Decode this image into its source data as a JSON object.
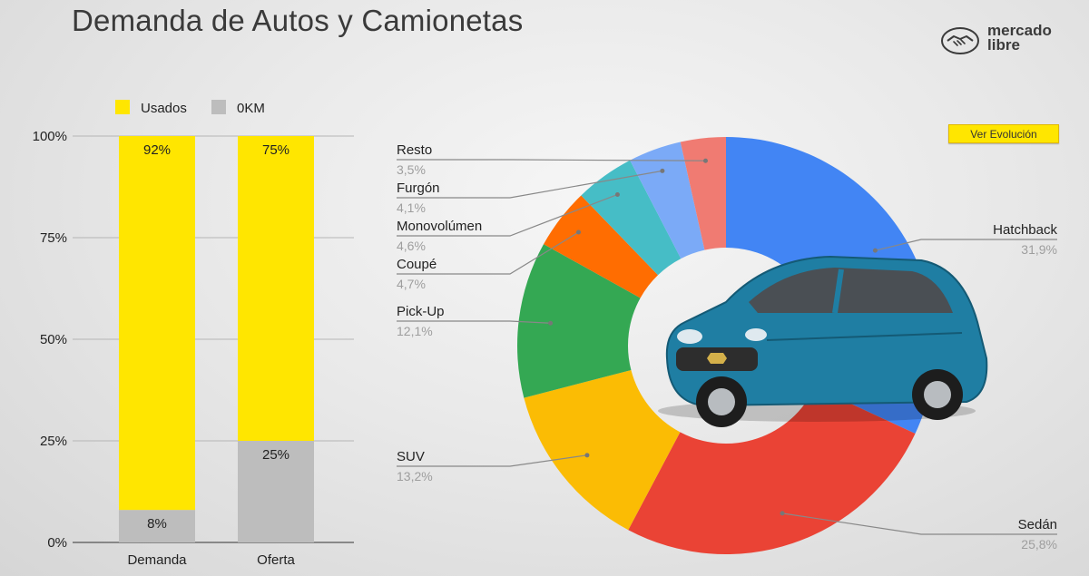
{
  "header": {
    "title": "Demanda de Autos y Camionetas",
    "logo_line1": "mercado",
    "logo_line2": "libre",
    "evolution_button": "Ver Evolución"
  },
  "chart_data": [
    {
      "type": "bar",
      "stacked": true,
      "categories": [
        "Demanda",
        "Oferta"
      ],
      "series": [
        {
          "name": "0KM",
          "values": [
            8,
            25
          ],
          "labels": [
            "8%",
            "25%"
          ],
          "color": "#bdbdbd"
        },
        {
          "name": "Usados",
          "values": [
            92,
            75
          ],
          "labels": [
            "92%",
            "75%"
          ],
          "color": "#ffe600"
        }
      ],
      "legend": [
        "Usados",
        "0KM"
      ],
      "legend_position": "top",
      "yticks": [
        "0%",
        "25%",
        "50%",
        "75%",
        "100%"
      ],
      "ylim": [
        0,
        100
      ],
      "grid": true
    },
    {
      "type": "pie",
      "donut": true,
      "slices": [
        {
          "label": "Hatchback",
          "value": 31.9,
          "text": "31,9%",
          "color": "#4285f4"
        },
        {
          "label": "Sedán",
          "value": 25.8,
          "text": "25,8%",
          "color": "#ea4335"
        },
        {
          "label": "SUV",
          "value": 13.2,
          "text": "13,2%",
          "color": "#fbbc04"
        },
        {
          "label": "Pick-Up",
          "value": 12.1,
          "text": "12,1%",
          "color": "#34a853"
        },
        {
          "label": "Coupé",
          "value": 4.7,
          "text": "4,7%",
          "color": "#ff6d01"
        },
        {
          "label": "Monovolúmen",
          "value": 4.6,
          "text": "4,6%",
          "color": "#46bdc6"
        },
        {
          "label": "Furgón",
          "value": 4.1,
          "text": "4,1%",
          "color": "#7baaf7"
        },
        {
          "label": "Resto",
          "value": 3.5,
          "text": "3,5%",
          "color": "#f07b72"
        }
      ]
    }
  ],
  "colors": {
    "usados": "#ffe600",
    "okm": "#bdbdbd",
    "label_value": "#9e9e9e"
  },
  "icons": {
    "logo": "handshake-icon",
    "center_image": "car-image"
  }
}
